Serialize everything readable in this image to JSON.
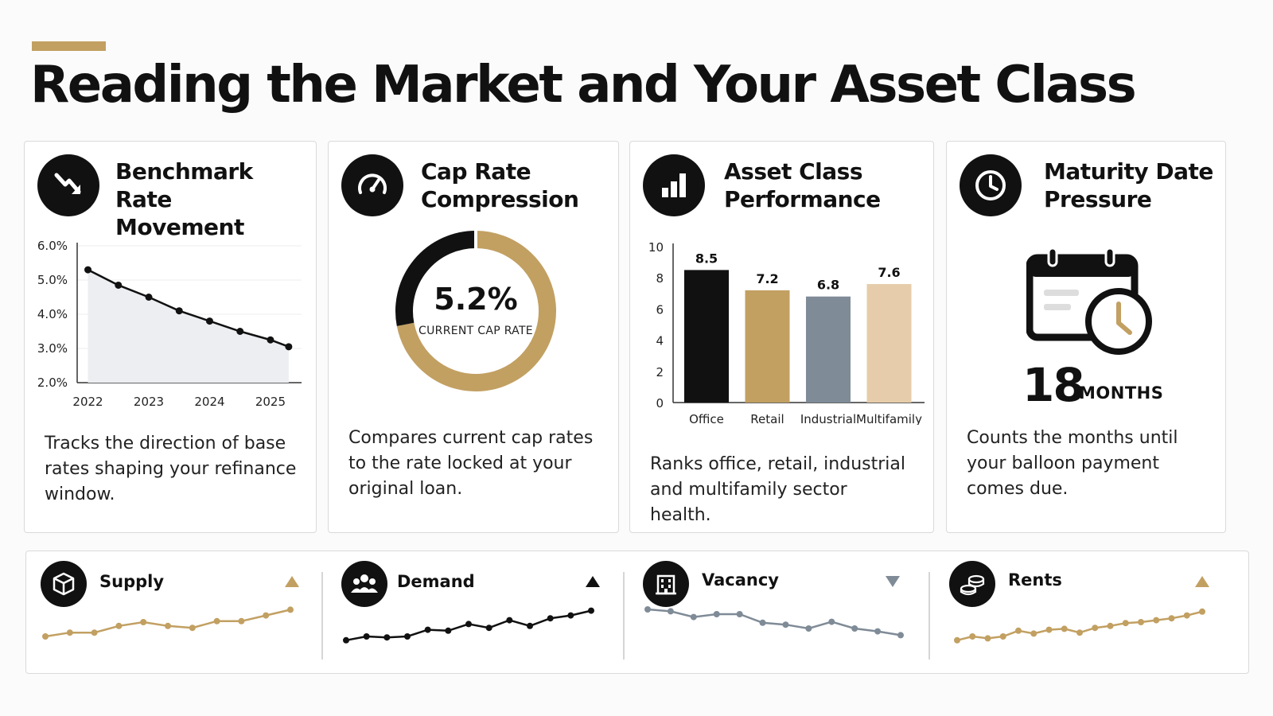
{
  "title": "Reading the Market and Your Asset Class",
  "colors": {
    "gold": "#c2a062",
    "black": "#111111",
    "slate": "#7f8b97",
    "sand": "#e6ccaa"
  },
  "cards": [
    {
      "title_line1": "Benchmark Rate",
      "title_line2": "Movement",
      "icon": "trend-down-icon",
      "description": "Tracks the direction of base rates shaping your refinance window."
    },
    {
      "title_line1": "Cap Rate",
      "title_line2": "Compression",
      "icon": "gauge-icon",
      "description": "Compares current cap rates to the rate locked at your original loan."
    },
    {
      "title_line1": "Asset Class",
      "title_line2": "Performance",
      "icon": "bar-chart-icon",
      "description": "Ranks office, retail, industrial and multifamily sector health."
    },
    {
      "title_line1": "Maturity Date",
      "title_line2": "Pressure",
      "icon": "clock-icon",
      "description": "Counts the months until your balloon payment comes due."
    }
  ],
  "maturity": {
    "value": "18",
    "unit": "MONTHS",
    "icon": "calendar-clock-icon"
  },
  "chart_data": [
    {
      "type": "area",
      "x": [
        2022,
        2022.5,
        2023,
        2023.5,
        2024,
        2024.5,
        2025,
        2025.3
      ],
      "values": [
        5.3,
        4.85,
        4.5,
        4.1,
        3.8,
        3.5,
        3.25,
        3.05
      ],
      "xticks": [
        "2022",
        "2023",
        "2024",
        "2025"
      ],
      "yticks": [
        "6.0%",
        "5.0%",
        "4.0%",
        "3.0%",
        "2.0%"
      ],
      "ylim": [
        2.0,
        6.0
      ],
      "grid": true
    },
    {
      "type": "pie",
      "value": "5.2%",
      "label": "CURRENT CAP RATE",
      "fraction_gold": 0.72
    },
    {
      "type": "bar",
      "categories": [
        "Office",
        "Retail",
        "Industrial",
        "Multifamily"
      ],
      "values": [
        8.5,
        7.2,
        6.8,
        7.6
      ],
      "value_labels": [
        "8.5",
        "7.2",
        "6.8",
        "7.6"
      ],
      "yticks": [
        "0",
        "2",
        "4",
        "6",
        "8",
        "10"
      ],
      "ylim": [
        0,
        10
      ],
      "bar_colors": [
        "#111111",
        "#c2a062",
        "#7f8b97",
        "#e6ccaa"
      ]
    },
    {
      "type": "line",
      "label": "Supply",
      "icon": "cube-icon",
      "trend": "up",
      "trend_icon": "triangle-up-icon",
      "color": "#c2a062",
      "values": [
        10,
        14,
        14,
        21,
        25,
        21,
        19,
        26,
        26,
        32,
        38
      ]
    },
    {
      "type": "line",
      "label": "Demand",
      "icon": "people-icon",
      "trend": "up",
      "trend_icon": "triangle-up-icon",
      "color": "#111111",
      "values": [
        6,
        10,
        9,
        10,
        17,
        16,
        23,
        19,
        27,
        21,
        29,
        32,
        37
      ]
    },
    {
      "type": "line",
      "label": "Vacancy",
      "icon": "building-icon",
      "trend": "down",
      "trend_icon": "triangle-down-icon",
      "color": "#7f8b97",
      "values": [
        30,
        28,
        22,
        25,
        25,
        16,
        14,
        10,
        17,
        10,
        7,
        3
      ]
    },
    {
      "type": "line",
      "label": "Rents",
      "icon": "coins-icon",
      "trend": "up",
      "trend_icon": "triangle-up-icon",
      "color": "#c2a062",
      "values": [
        6,
        10,
        8,
        10,
        16,
        13,
        17,
        18,
        14,
        19,
        21,
        24,
        25,
        27,
        29,
        32,
        36
      ]
    }
  ]
}
